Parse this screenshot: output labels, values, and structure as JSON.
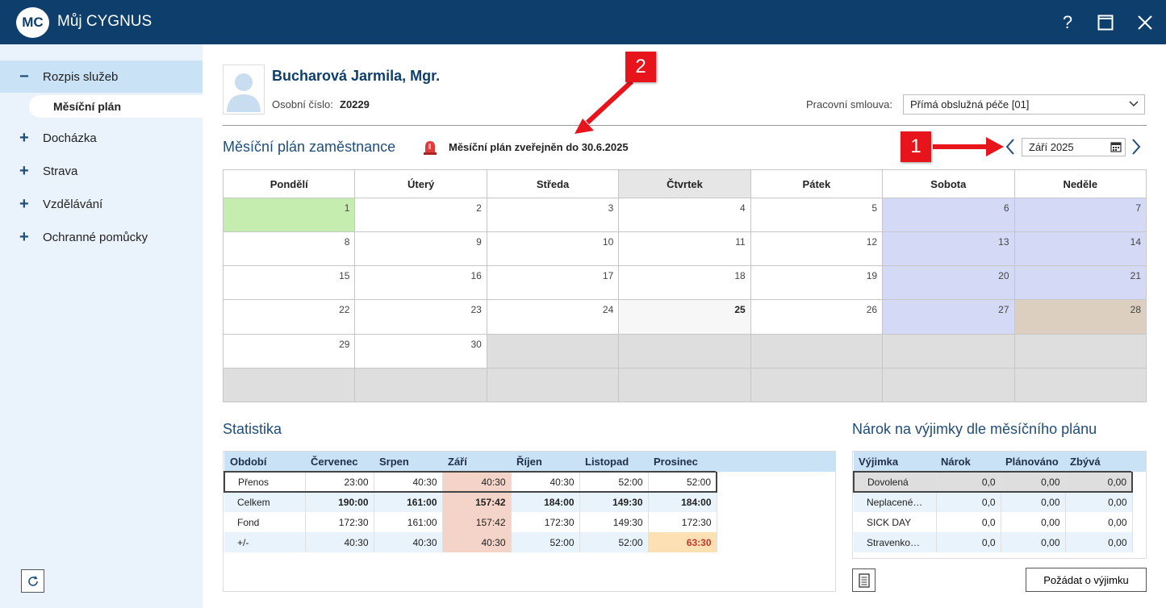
{
  "app": {
    "logo": "MC",
    "title": "Můj CYGNUS",
    "help_icon": "?",
    "maximize_icon": "maximize-icon",
    "close_icon": "close-icon"
  },
  "sidebar": {
    "items": [
      {
        "sign": "−",
        "label": "Rozpis služeb"
      },
      {
        "sign": "+",
        "label": "Docházka"
      },
      {
        "sign": "+",
        "label": "Strava"
      },
      {
        "sign": "+",
        "label": "Vzdělávání"
      },
      {
        "sign": "+",
        "label": "Ochranné pomůcky"
      }
    ],
    "subitem": "Měsíční plán"
  },
  "employee": {
    "name": "Bucharová Jarmila, Mgr.",
    "number_label": "Osobní číslo:",
    "number": "Z0229",
    "contract_label": "Pracovní smlouva:",
    "contract_value": "Přímá obslužná péče [01]"
  },
  "plan": {
    "title": "Měsíční plán zaměstnance",
    "published": "Měsíční plán zveřejněn do 30.6.2025",
    "month": "Září 2025"
  },
  "calendar": {
    "weekdays": [
      "Pondělí",
      "Úterý",
      "Středa",
      "Čtvrtek",
      "Pátek",
      "Sobota",
      "Neděle"
    ],
    "weeks": [
      [
        "1",
        "2",
        "3",
        "4",
        "5",
        "6",
        "7"
      ],
      [
        "8",
        "9",
        "10",
        "11",
        "12",
        "13",
        "14"
      ],
      [
        "15",
        "16",
        "17",
        "18",
        "19",
        "20",
        "21"
      ],
      [
        "22",
        "23",
        "24",
        "25",
        "26",
        "27",
        "28"
      ],
      [
        "29",
        "30",
        "",
        "",
        "",
        "",
        ""
      ],
      [
        "",
        "",
        "",
        "",
        "",
        "",
        ""
      ]
    ]
  },
  "statistics": {
    "title": "Statistika",
    "columns": [
      "Období",
      "Červenec",
      "Srpen",
      "Září",
      "Říjen",
      "Listopad",
      "Prosinec"
    ],
    "rows": [
      {
        "label": "Přenos",
        "values": [
          "23:00",
          "40:30",
          "40:30",
          "40:30",
          "52:00",
          "52:00"
        ]
      },
      {
        "label": "Celkem",
        "values": [
          "190:00",
          "161:00",
          "157:42",
          "184:00",
          "149:30",
          "184:00"
        ]
      },
      {
        "label": "Fond",
        "values": [
          "172:30",
          "161:00",
          "157:42",
          "172:30",
          "149:30",
          "172:30"
        ]
      },
      {
        "label": "+/-",
        "values": [
          "40:30",
          "40:30",
          "40:30",
          "52:00",
          "52:00",
          "63:30"
        ]
      }
    ]
  },
  "exceptions": {
    "title": "Nárok na výjimky dle měsíčního plánu",
    "columns": [
      "Výjimka",
      "Nárok",
      "Plánováno",
      "Zbývá"
    ],
    "rows": [
      {
        "label": "Dovolená",
        "values": [
          "0,0",
          "0,00",
          "0,00"
        ]
      },
      {
        "label": "Neplacené…",
        "values": [
          "0,0",
          "0,00",
          "0,00"
        ]
      },
      {
        "label": "SICK DAY",
        "values": [
          "0,0",
          "0,00",
          "0,00"
        ]
      },
      {
        "label": "Stravenko…",
        "values": [
          "0,0",
          "0,00",
          "0,00"
        ]
      }
    ],
    "request_button": "Požádat o výjimku"
  },
  "annotations": {
    "one": "1",
    "two": "2"
  },
  "colors": {
    "titlebar": "#0e3e6b",
    "accent": "#1f4d7a",
    "callout": "#e8141b",
    "weekend": "#d4daf5",
    "first_day": "#c6edb0",
    "holiday": "#dccfc0"
  }
}
